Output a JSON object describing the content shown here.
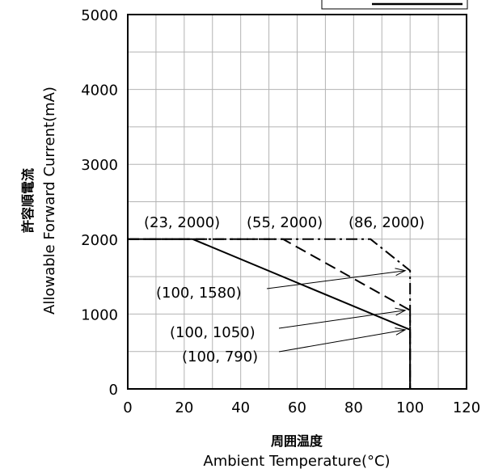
{
  "chart_data": {
    "type": "line",
    "xlabel_jp": "周囲温度",
    "xlabel": "Ambient Temperature(°C)",
    "ylabel_jp": "許容順電流",
    "ylabel": "Allowable Forward Current(mA)",
    "xlim": [
      0,
      120
    ],
    "ylim": [
      0,
      5000
    ],
    "x_ticks": [
      0,
      20,
      40,
      60,
      80,
      100,
      120
    ],
    "x_tick_labels": [
      "0",
      "20",
      "40",
      "60",
      "80",
      "100",
      "120"
    ],
    "y_ticks": [
      0,
      1000,
      2000,
      3000,
      4000,
      5000
    ],
    "y_tick_labels": [
      "0",
      "1000",
      "2000",
      "3000",
      "4000",
      "5000"
    ],
    "x_grid_step": 10,
    "y_grid_step": 500,
    "grid": true,
    "legend": "top-right (partially cut off)",
    "series": [
      {
        "style": "solid",
        "color": "#000000",
        "x": [
          0,
          23,
          100,
          100
        ],
        "y": [
          2000,
          2000,
          790,
          0
        ]
      },
      {
        "style": "dashed",
        "color": "#000000",
        "x": [
          0,
          55,
          100,
          100
        ],
        "y": [
          2000,
          2000,
          1050,
          0
        ]
      },
      {
        "style": "dash-dot",
        "color": "#000000",
        "x": [
          0,
          86,
          100,
          100
        ],
        "y": [
          2000,
          2000,
          1580,
          0
        ]
      }
    ],
    "annotations": [
      {
        "text": "(23, 2000)",
        "x": 23,
        "y": 2000
      },
      {
        "text": "(55, 2000)",
        "x": 55,
        "y": 2000
      },
      {
        "text": "(86, 2000)",
        "x": 86,
        "y": 2000
      },
      {
        "text": "(100, 1580)",
        "x": 100,
        "y": 1580,
        "arrow": true
      },
      {
        "text": "(100, 1050)",
        "x": 100,
        "y": 1050,
        "arrow": true
      },
      {
        "text": "(100, 790)",
        "x": 100,
        "y": 790,
        "arrow": true
      }
    ]
  }
}
